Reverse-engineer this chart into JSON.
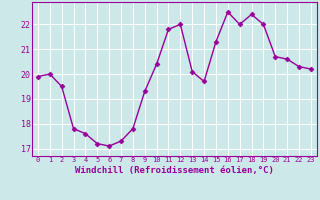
{
  "x": [
    0,
    1,
    2,
    3,
    4,
    5,
    6,
    7,
    8,
    9,
    10,
    11,
    12,
    13,
    14,
    15,
    16,
    17,
    18,
    19,
    20,
    21,
    22,
    23
  ],
  "y": [
    19.9,
    20.0,
    19.5,
    17.8,
    17.6,
    17.2,
    17.1,
    17.3,
    17.8,
    19.3,
    20.4,
    21.8,
    22.0,
    20.1,
    19.7,
    21.3,
    22.5,
    22.0,
    22.4,
    22.0,
    20.7,
    20.6,
    20.3,
    20.2
  ],
  "line_color": "#990099",
  "marker": "D",
  "markersize": 2.5,
  "linewidth": 1.0,
  "xlabel": "Windchill (Refroidissement éolien,°C)",
  "xlabel_fontsize": 6.5,
  "xtick_labels": [
    "0",
    "1",
    "2",
    "3",
    "4",
    "5",
    "6",
    "7",
    "8",
    "9",
    "10",
    "11",
    "12",
    "13",
    "14",
    "15",
    "16",
    "17",
    "18",
    "19",
    "20",
    "21",
    "22",
    "23"
  ],
  "ytick_labels": [
    "17",
    "18",
    "19",
    "20",
    "21",
    "22"
  ],
  "ytick_vals": [
    17,
    18,
    19,
    20,
    21,
    22
  ],
  "ylim": [
    16.7,
    22.9
  ],
  "xlim": [
    -0.5,
    23.5
  ],
  "bg_color": "#cce8e8",
  "grid_color": "#ffffff",
  "tick_color": "#990099",
  "label_color": "#990099",
  "spine_color": "#990099"
}
